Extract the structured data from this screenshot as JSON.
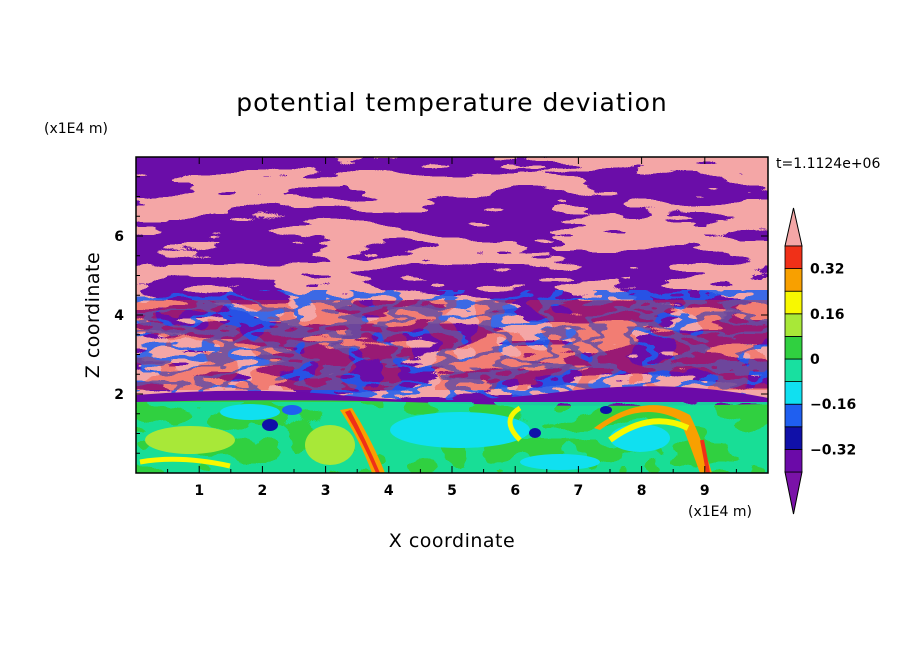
{
  "chart_data": {
    "type": "heatmap",
    "title": "potential temperature deviation",
    "xlabel": "X coordinate",
    "ylabel": "Z coordinate",
    "x_unit": "(x1E4 m)",
    "y_unit": "(x1E4 m)",
    "time_label": "t=1.1124e+06",
    "xlim": [
      0,
      10
    ],
    "ylim": [
      0,
      8
    ],
    "xticks": [
      "1",
      "2",
      "3",
      "4",
      "5",
      "6",
      "7",
      "8",
      "9"
    ],
    "yticks": [
      "2",
      "4",
      "6"
    ],
    "colorbar": {
      "levels": [
        {
          "range": "< -0.40",
          "color": "#7a12a8"
        },
        {
          "range": "-0.40 to -0.32",
          "color": "#6b0aa8"
        },
        {
          "range": "-0.32 to -0.24",
          "color": "#1010a8"
        },
        {
          "range": "-0.24 to -0.16",
          "color": "#1f5ff0"
        },
        {
          "range": "-0.16 to -0.08",
          "color": "#10e0f0"
        },
        {
          "range": "-0.08 to 0",
          "color": "#18e0a0"
        },
        {
          "range": "0 to 0.08",
          "color": "#30d040"
        },
        {
          "range": "0.08 to 0.16",
          "color": "#a8e838"
        },
        {
          "range": "0.16 to 0.24",
          "color": "#f8f800"
        },
        {
          "range": "0.24 to 0.32",
          "color": "#f8a000"
        },
        {
          "range": "0.32 to 0.40",
          "color": "#f03018"
        },
        {
          "range": "> 0.40",
          "color": "#f4a6a6"
        }
      ],
      "tick_labels": [
        "0.32",
        "0.16",
        "0",
        "-0.16",
        "-0.32"
      ]
    },
    "regions": [
      {
        "name": "lower layer (z < 1.7)",
        "dominant": "green / cyan with yellow-orange plumes near x=3.8 and x=8.8"
      },
      {
        "name": "mid layer (z 1.7-4)",
        "dominant": "alternating pink and purple with multicolor filaments"
      },
      {
        "name": "upper layer (z 4-8)",
        "dominant": "alternating pink and purple bands"
      }
    ]
  }
}
